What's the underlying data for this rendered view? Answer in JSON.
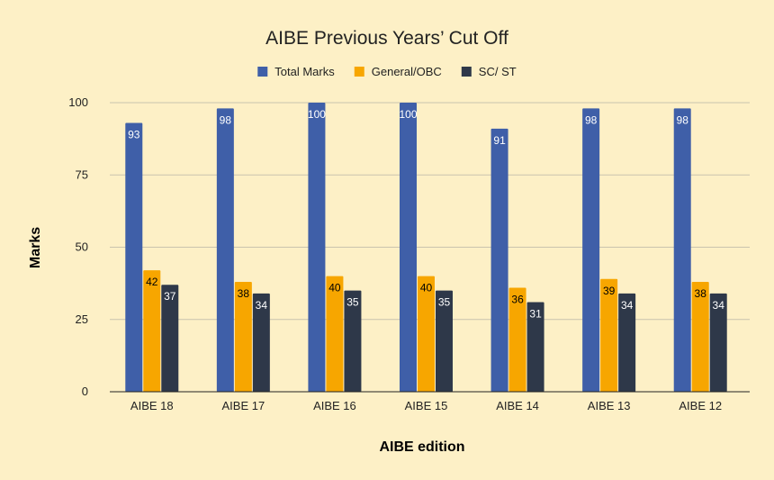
{
  "chart_data": {
    "type": "bar",
    "title": "AIBE Previous Years’ Cut Off",
    "xlabel": "AIBE edition",
    "ylabel": "Marks",
    "categories": [
      "AIBE 18",
      "AIBE 17",
      "AIBE 16",
      "AIBE 15",
      "AIBE 14",
      "AIBE 13",
      "AIBE 12"
    ],
    "series": [
      {
        "name": "Total Marks",
        "color": "#3F5FA8",
        "label_color": "#FFFFFF",
        "values": [
          93,
          98,
          100,
          100,
          91,
          98,
          98
        ]
      },
      {
        "name": "General/OBC",
        "color": "#F7A600",
        "label_color": "#000000",
        "values": [
          42,
          38,
          40,
          40,
          36,
          39,
          38
        ]
      },
      {
        "name": "SC/ ST",
        "color": "#2E3849",
        "label_color": "#FFFFFF",
        "values": [
          37,
          34,
          35,
          35,
          31,
          34,
          34
        ]
      }
    ],
    "ylim": [
      0,
      100
    ],
    "yticks": [
      0,
      25,
      50,
      75,
      100
    ],
    "grid": true,
    "legend_position": "top"
  }
}
